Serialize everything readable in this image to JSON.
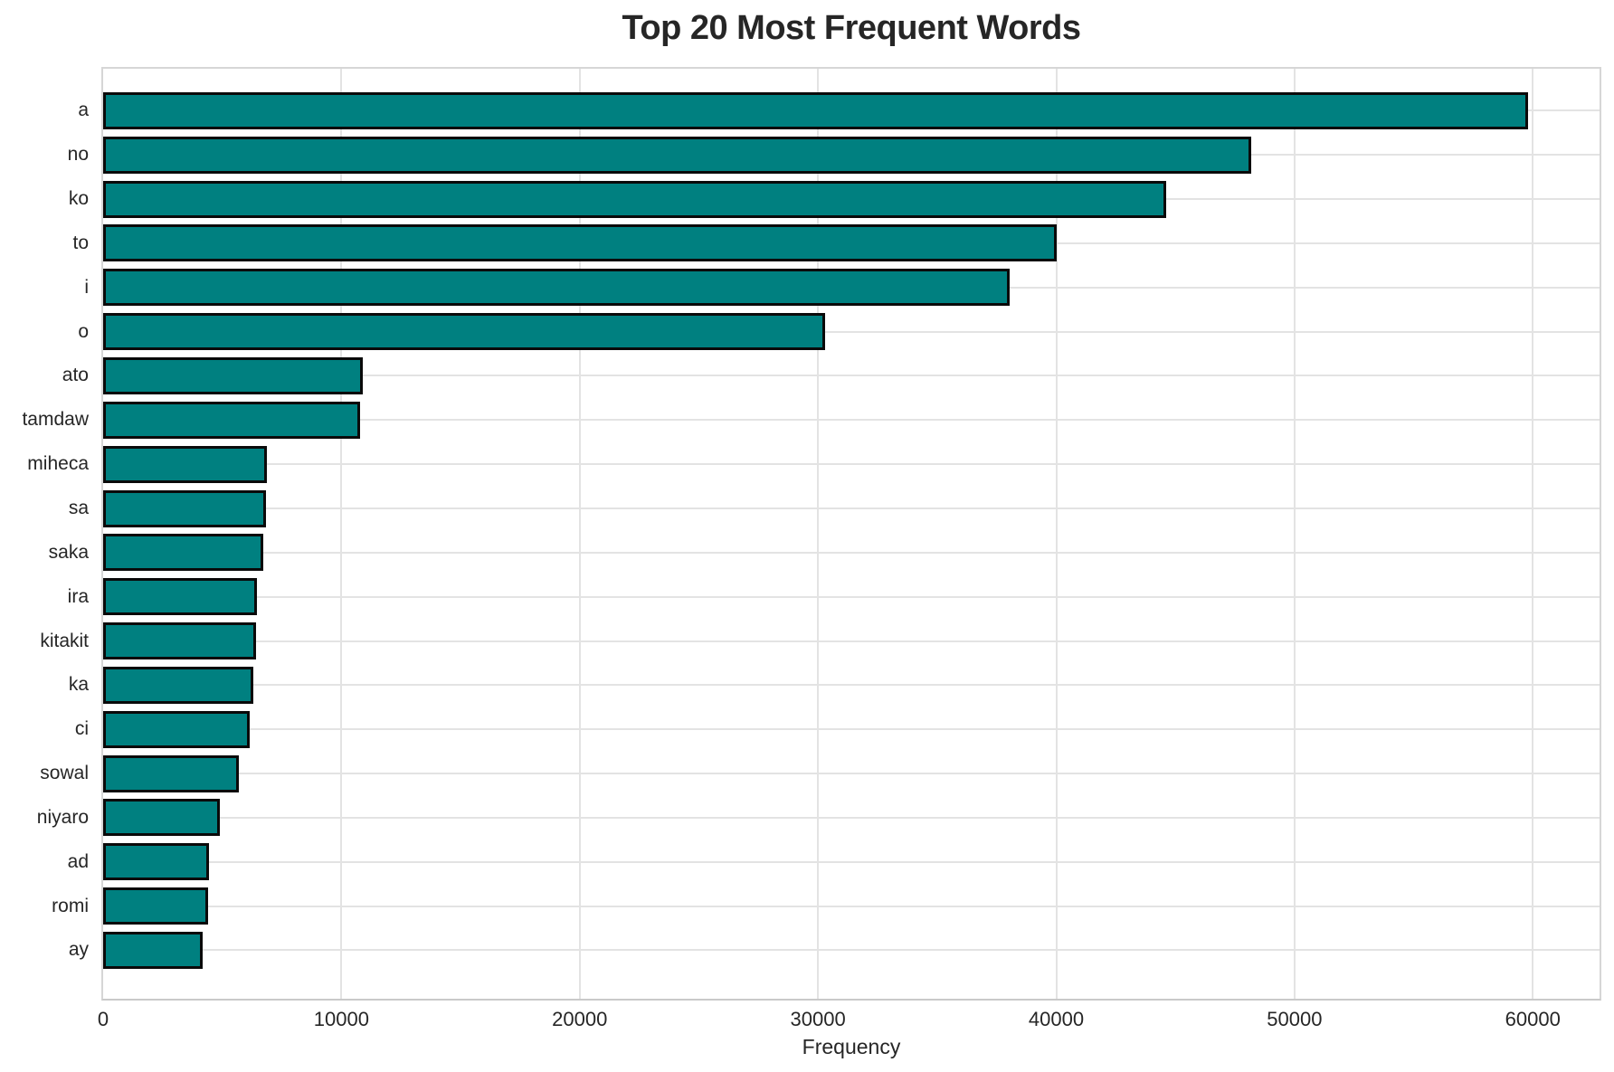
{
  "figure": {
    "background": "#ffffff"
  },
  "chart_data": {
    "type": "bar",
    "orientation": "horizontal",
    "title": "Top 20 Most Frequent Words",
    "xlabel": "Frequency",
    "ylabel": "",
    "categories": [
      "a",
      "no",
      "ko",
      "to",
      "i",
      "o",
      "ato",
      "tamdaw",
      "miheca",
      "sa",
      "saka",
      "ira",
      "kitakit",
      "ka",
      "ci",
      "sowal",
      "niyaro",
      "ad",
      "romi",
      "ay"
    ],
    "values": [
      59800,
      48200,
      44600,
      40000,
      38050,
      30300,
      10900,
      10800,
      6870,
      6840,
      6730,
      6470,
      6410,
      6310,
      6150,
      5680,
      4910,
      4440,
      4410,
      4190
    ],
    "xlim": [
      0,
      62800
    ],
    "xticks": [
      0,
      10000,
      20000,
      30000,
      40000,
      50000,
      60000
    ],
    "grid": true,
    "grid_axes": "both",
    "legend": false,
    "bar_color": "#008080",
    "bar_edge_color": "#0a0a0a",
    "grid_color": "#e3e3e3",
    "spine_color": "#d6d6d6",
    "text_color": "#262626"
  }
}
